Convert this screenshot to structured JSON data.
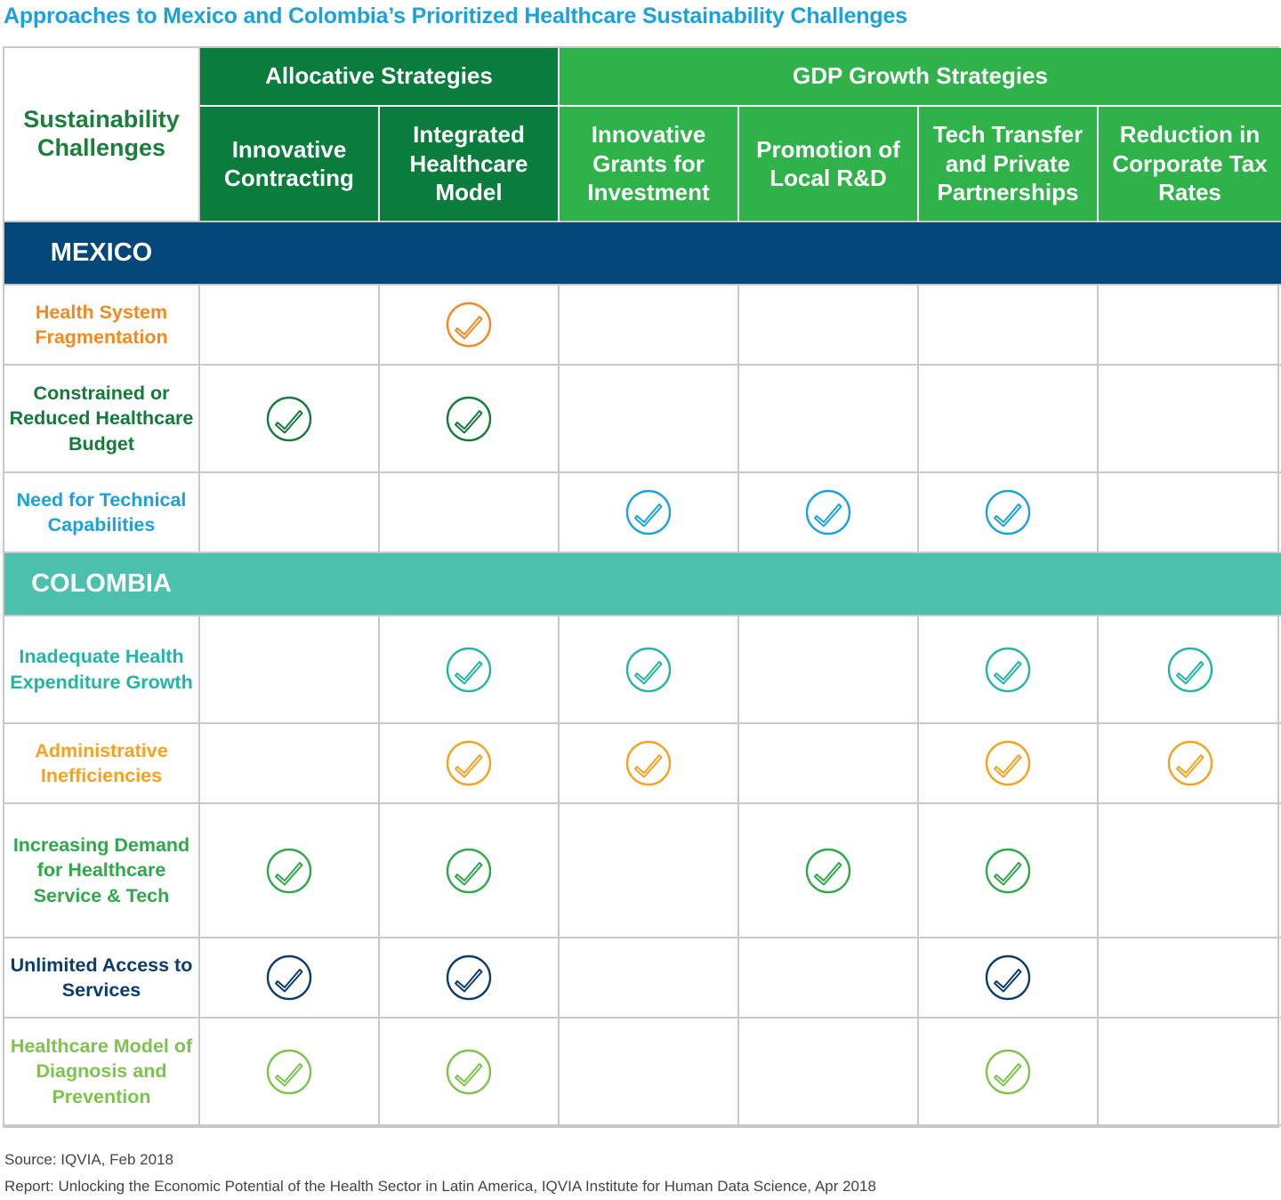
{
  "title": "Approaches to Mexico and Colombia’s Prioritized Healthcare Sustainability Challenges",
  "corner_header": "Sustainability Challenges",
  "groups": [
    {
      "label": "Allocative Strategies"
    },
    {
      "label": "GDP Growth Strategies"
    }
  ],
  "columns": [
    {
      "label": "Innovative Contracting",
      "group": "Allocative Strategies"
    },
    {
      "label": "Integrated Healthcare Model",
      "group": "Allocative Strategies"
    },
    {
      "label": "Innovative Grants for Investment",
      "group": "GDP Growth Strategies"
    },
    {
      "label": "Promotion of Local R&D",
      "group": "GDP Growth Strategies"
    },
    {
      "label": "Tech Transfer and Private Partnerships",
      "group": "GDP Growth Strategies"
    },
    {
      "label": "Reduction in Corporate Tax Rates",
      "group": "GDP Growth Strategies"
    }
  ],
  "colors": {
    "allocative_header": "#0a7c3c",
    "gdp_header": "#2fb24a",
    "mexico_band": "#02467a",
    "colombia_band": "#4ac0ad",
    "title": "#1aa2dd",
    "grid_line": "#c8c8c8"
  },
  "chart_data": {
    "type": "table",
    "title": "Approaches to Mexico and Colombia’s Prioritized Healthcare Sustainability Challenges",
    "columns": [
      "Innovative Contracting",
      "Integrated Healthcare Model",
      "Innovative Grants for Investment",
      "Promotion of Local R&D",
      "Tech Transfer and Private Partnerships",
      "Reduction in Corporate Tax Rates"
    ],
    "sections": [
      {
        "country": "MEXICO",
        "rows": [
          {
            "label": "Health System Fragmentation",
            "color": "#f28a1f",
            "checks": [
              false,
              true,
              false,
              false,
              false,
              false
            ]
          },
          {
            "label": "Constrained or Reduced Healthcare Budget",
            "color": "#137a3a",
            "checks": [
              true,
              true,
              false,
              false,
              false,
              false
            ]
          },
          {
            "label": "Need for Technical Capabilities",
            "color": "#1aa2dd",
            "checks": [
              false,
              false,
              true,
              true,
              true,
              false
            ]
          }
        ]
      },
      {
        "country": "COLOMBIA",
        "rows": [
          {
            "label": "Inadequate Health Expenditure Growth",
            "color": "#22b5a6",
            "checks": [
              false,
              true,
              true,
              false,
              true,
              true
            ]
          },
          {
            "label": "Administrative Inefficiencies",
            "color": "#f7a21e",
            "checks": [
              false,
              true,
              true,
              false,
              true,
              true
            ]
          },
          {
            "label": "Increasing Demand for Healthcare Service & Tech",
            "color": "#2fa84a",
            "checks": [
              true,
              true,
              false,
              true,
              true,
              false
            ]
          },
          {
            "label": "Unlimited Access to Services",
            "color": "#0b3c6e",
            "checks": [
              true,
              true,
              false,
              false,
              true,
              false
            ]
          },
          {
            "label": "Healthcare Model of Diagnosis and Prevention",
            "color": "#7ec34d",
            "checks": [
              true,
              true,
              false,
              false,
              true,
              false
            ]
          }
        ]
      }
    ]
  },
  "footer": {
    "source": "Source: IQVIA, Feb 2018",
    "report": "Report: Unlocking the Economic Potential of the Health Sector in Latin America, IQVIA Institute for Human Data Science, Apr 2018"
  }
}
